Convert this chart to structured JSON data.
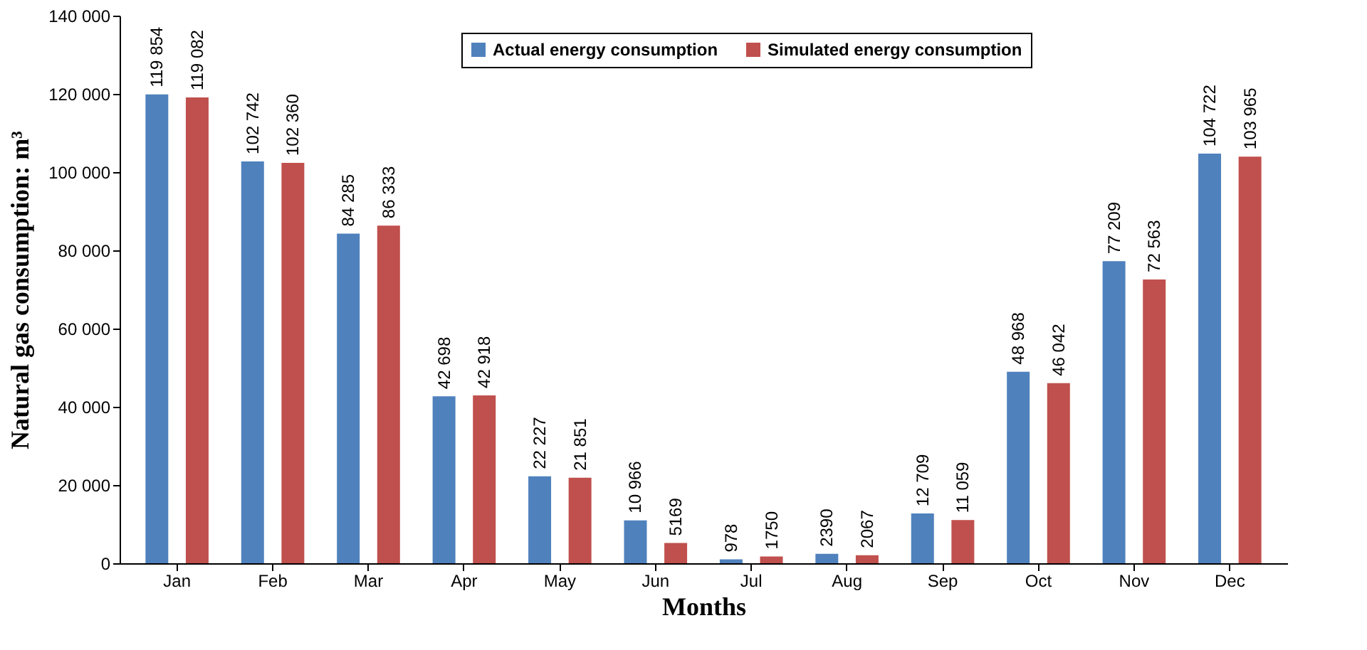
{
  "chart_data": {
    "type": "bar",
    "xlabel": "Months",
    "ylabel": "Natural gas consumption: m³",
    "categories": [
      "Jan",
      "Feb",
      "Mar",
      "Apr",
      "May",
      "Jun",
      "Jul",
      "Aug",
      "Sep",
      "Oct",
      "Nov",
      "Dec"
    ],
    "series": [
      {
        "name": "Actual energy consumption",
        "color": "#4f81bd",
        "values": [
          119854,
          102742,
          84285,
          42698,
          22227,
          10966,
          978,
          2390,
          12709,
          48968,
          77209,
          104722
        ],
        "value_labels": [
          "119 854",
          "102 742",
          "84 285",
          "42 698",
          "22 227",
          "10 966",
          "978",
          "2390",
          "12 709",
          "48 968",
          "77 209",
          "104 722"
        ]
      },
      {
        "name": "Simulated energy consumption",
        "color": "#c0504d",
        "values": [
          119082,
          102360,
          86333,
          42918,
          21851,
          5169,
          1750,
          2067,
          11059,
          46042,
          72563,
          103965
        ],
        "value_labels": [
          "119 082",
          "102 360",
          "86 333",
          "42 918",
          "21 851",
          "5169",
          "1750",
          "2067",
          "11 059",
          "46 042",
          "72 563",
          "103 965"
        ]
      }
    ],
    "ylim": [
      0,
      140000
    ],
    "yticks": [
      {
        "value": 0,
        "label": "0"
      },
      {
        "value": 20000,
        "label": "20 000"
      },
      {
        "value": 40000,
        "label": "40 000"
      },
      {
        "value": 60000,
        "label": "60 000"
      },
      {
        "value": 80000,
        "label": "80 000"
      },
      {
        "value": 100000,
        "label": "100 000"
      },
      {
        "value": 120000,
        "label": "120 000"
      },
      {
        "value": 140000,
        "label": "140 000"
      }
    ],
    "grid": false,
    "legend": "top"
  }
}
